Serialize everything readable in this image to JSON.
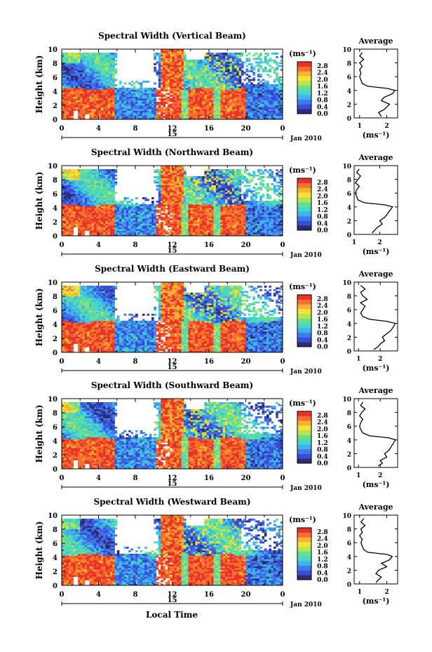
{
  "figure": {
    "xlabel": "Local Time",
    "date_label": "Jan 2010",
    "day_label": "15"
  },
  "colors": {
    "colormap": [
      "#2b2d6e",
      "#3a4bd8",
      "#3d7be8",
      "#3fb3ee",
      "#48d6c8",
      "#66e08a",
      "#b8e44f",
      "#f2e23a",
      "#f6b233",
      "#f4702c",
      "#e8332a"
    ],
    "white": "#ffffff",
    "axis": "#000000"
  },
  "colorbar": {
    "unit_label": "(ms⁻¹)",
    "ticks": [
      "2.8",
      "2.4",
      "2.0",
      "1.6",
      "1.2",
      "0.8",
      "0.4",
      "0.0"
    ]
  },
  "chart_data": [
    {
      "type": "heatmap",
      "title": "Spectral Width (Vertical Beam)",
      "ylabel": "Height (km)",
      "xticks": [
        "0",
        "4",
        "8",
        "12",
        "16",
        "20",
        "0"
      ],
      "yticks": [
        "0",
        "2",
        "4",
        "6",
        "8",
        "10"
      ],
      "xlim": [
        0,
        24
      ],
      "ylim": [
        0,
        10
      ],
      "zlim": [
        0,
        3.0
      ],
      "profile": {
        "title": "Average",
        "xlabel": "(ms⁻¹)",
        "xticks": [
          "1",
          "2"
        ],
        "xlim": [
          0.8,
          2.4
        ],
        "yticks": [
          "0",
          "2",
          "4",
          "6",
          "8",
          "10"
        ],
        "heights": [
          0.2,
          0.8,
          1.2,
          1.6,
          2.0,
          2.5,
          3.0,
          3.5,
          4.0,
          4.3,
          4.6,
          5.0,
          5.5,
          6.0,
          6.5,
          7.0,
          7.5,
          8.0,
          8.5,
          9.0,
          9.5
        ],
        "values": [
          1.8,
          1.7,
          1.9,
          2.0,
          2.1,
          1.8,
          1.9,
          2.2,
          2.3,
          2.0,
          1.3,
          1.1,
          1.05,
          1.0,
          1.05,
          1.0,
          1.1,
          1.0,
          1.15,
          1.0,
          1.1
        ]
      }
    },
    {
      "type": "heatmap",
      "title": "Spectral Width (Northward Beam)",
      "ylabel": "Height (km)",
      "xticks": [
        "0",
        "4",
        "8",
        "12",
        "16",
        "20",
        "0"
      ],
      "yticks": [
        "0",
        "2",
        "4",
        "6",
        "8",
        "10"
      ],
      "xlim": [
        0,
        24
      ],
      "ylim": [
        0,
        10
      ],
      "zlim": [
        0,
        3.0
      ],
      "profile": {
        "title": "Average",
        "xlabel": "(ms⁻¹)",
        "xticks": [
          "1",
          "2"
        ],
        "xlim": [
          1.0,
          2.7
        ],
        "yticks": [
          "0",
          "2",
          "4",
          "6",
          "8",
          "10"
        ],
        "heights": [
          0.2,
          0.6,
          1.0,
          1.5,
          2.0,
          2.5,
          3.0,
          3.5,
          4.0,
          4.3,
          4.6,
          5.0,
          5.5,
          6.0,
          6.5,
          7.0,
          7.5,
          8.0,
          8.5,
          9.0,
          9.5
        ],
        "values": [
          1.7,
          1.8,
          1.9,
          2.1,
          2.0,
          2.2,
          2.3,
          2.4,
          2.5,
          2.2,
          1.4,
          1.15,
          1.1,
          1.05,
          1.1,
          1.2,
          1.05,
          1.15,
          1.25,
          1.1,
          1.2
        ]
      }
    },
    {
      "type": "heatmap",
      "title": "Spectral Width (Eastward Beam)",
      "ylabel": "Height (km)",
      "xticks": [
        "0",
        "4",
        "8",
        "12",
        "16",
        "20",
        "0"
      ],
      "yticks": [
        "0",
        "2",
        "4",
        "6",
        "8",
        "10"
      ],
      "xlim": [
        0,
        24
      ],
      "ylim": [
        0,
        10
      ],
      "zlim": [
        0,
        3.0
      ],
      "profile": {
        "title": "Average",
        "xlabel": "(ms⁻¹)",
        "xticks": [
          "1",
          "2"
        ],
        "xlim": [
          0.8,
          2.8
        ],
        "yticks": [
          "0",
          "2",
          "4",
          "6",
          "8",
          "10"
        ],
        "heights": [
          0.2,
          0.6,
          1.0,
          1.5,
          2.0,
          2.5,
          3.0,
          3.5,
          4.0,
          4.3,
          4.6,
          5.0,
          5.5,
          6.0,
          6.5,
          7.0,
          7.5,
          8.0,
          8.5,
          9.0,
          9.5
        ],
        "values": [
          1.7,
          1.9,
          2.0,
          2.2,
          2.1,
          2.3,
          2.5,
          2.6,
          2.7,
          2.3,
          1.5,
          1.2,
          1.1,
          1.2,
          1.3,
          1.1,
          1.4,
          1.2,
          1.1,
          1.3,
          1.1
        ]
      }
    },
    {
      "type": "heatmap",
      "title": "Spectral Width (Southward Beam)",
      "ylabel": "Height (km)",
      "xticks": [
        "0",
        "4",
        "8",
        "12",
        "16",
        "20",
        "0"
      ],
      "yticks": [
        "0",
        "2",
        "4",
        "6",
        "8",
        "10"
      ],
      "xlim": [
        0,
        24
      ],
      "ylim": [
        0,
        10
      ],
      "zlim": [
        0,
        3.0
      ],
      "profile": {
        "title": "Average",
        "xlabel": "(ms⁻¹)",
        "xticks": [
          "1",
          "2"
        ],
        "xlim": [
          0.8,
          2.8
        ],
        "yticks": [
          "0",
          "2",
          "4",
          "6",
          "8",
          "10"
        ],
        "heights": [
          0.2,
          0.6,
          1.0,
          1.5,
          2.0,
          2.5,
          3.0,
          3.5,
          4.0,
          4.3,
          4.6,
          5.0,
          5.5,
          6.0,
          6.5,
          7.0,
          7.5,
          8.0,
          8.5,
          9.0,
          9.5
        ],
        "values": [
          1.9,
          2.1,
          2.0,
          2.3,
          2.2,
          2.4,
          2.5,
          2.6,
          2.7,
          2.4,
          1.5,
          1.2,
          1.1,
          1.05,
          1.1,
          1.2,
          1.05,
          1.15,
          1.3,
          1.1,
          1.2
        ]
      }
    },
    {
      "type": "heatmap",
      "title": "Spectral Width (Westward Beam)",
      "ylabel": "Height (km)",
      "xticks": [
        "0",
        "4",
        "8",
        "12",
        "16",
        "20",
        "0"
      ],
      "yticks": [
        "0",
        "2",
        "4",
        "6",
        "8",
        "10"
      ],
      "xlim": [
        0,
        24
      ],
      "ylim": [
        0,
        10
      ],
      "zlim": [
        0,
        3.0
      ],
      "profile": {
        "title": "Average",
        "xlabel": "(ms⁻¹)",
        "xticks": [
          "1",
          "2"
        ],
        "xlim": [
          0.8,
          2.4
        ],
        "yticks": [
          "0",
          "2",
          "4",
          "6",
          "8",
          "10"
        ],
        "heights": [
          0.2,
          0.6,
          1.0,
          1.5,
          2.0,
          2.5,
          3.0,
          3.5,
          4.0,
          4.3,
          4.6,
          5.0,
          5.5,
          6.0,
          6.5,
          7.0,
          7.5,
          8.0,
          8.5,
          9.0,
          9.5
        ],
        "values": [
          1.6,
          1.7,
          1.8,
          1.6,
          1.7,
          2.0,
          1.8,
          2.1,
          2.2,
          2.0,
          1.3,
          1.15,
          1.1,
          1.05,
          1.1,
          1.0,
          1.1,
          1.05,
          1.2,
          1.05,
          1.15
        ]
      }
    }
  ]
}
